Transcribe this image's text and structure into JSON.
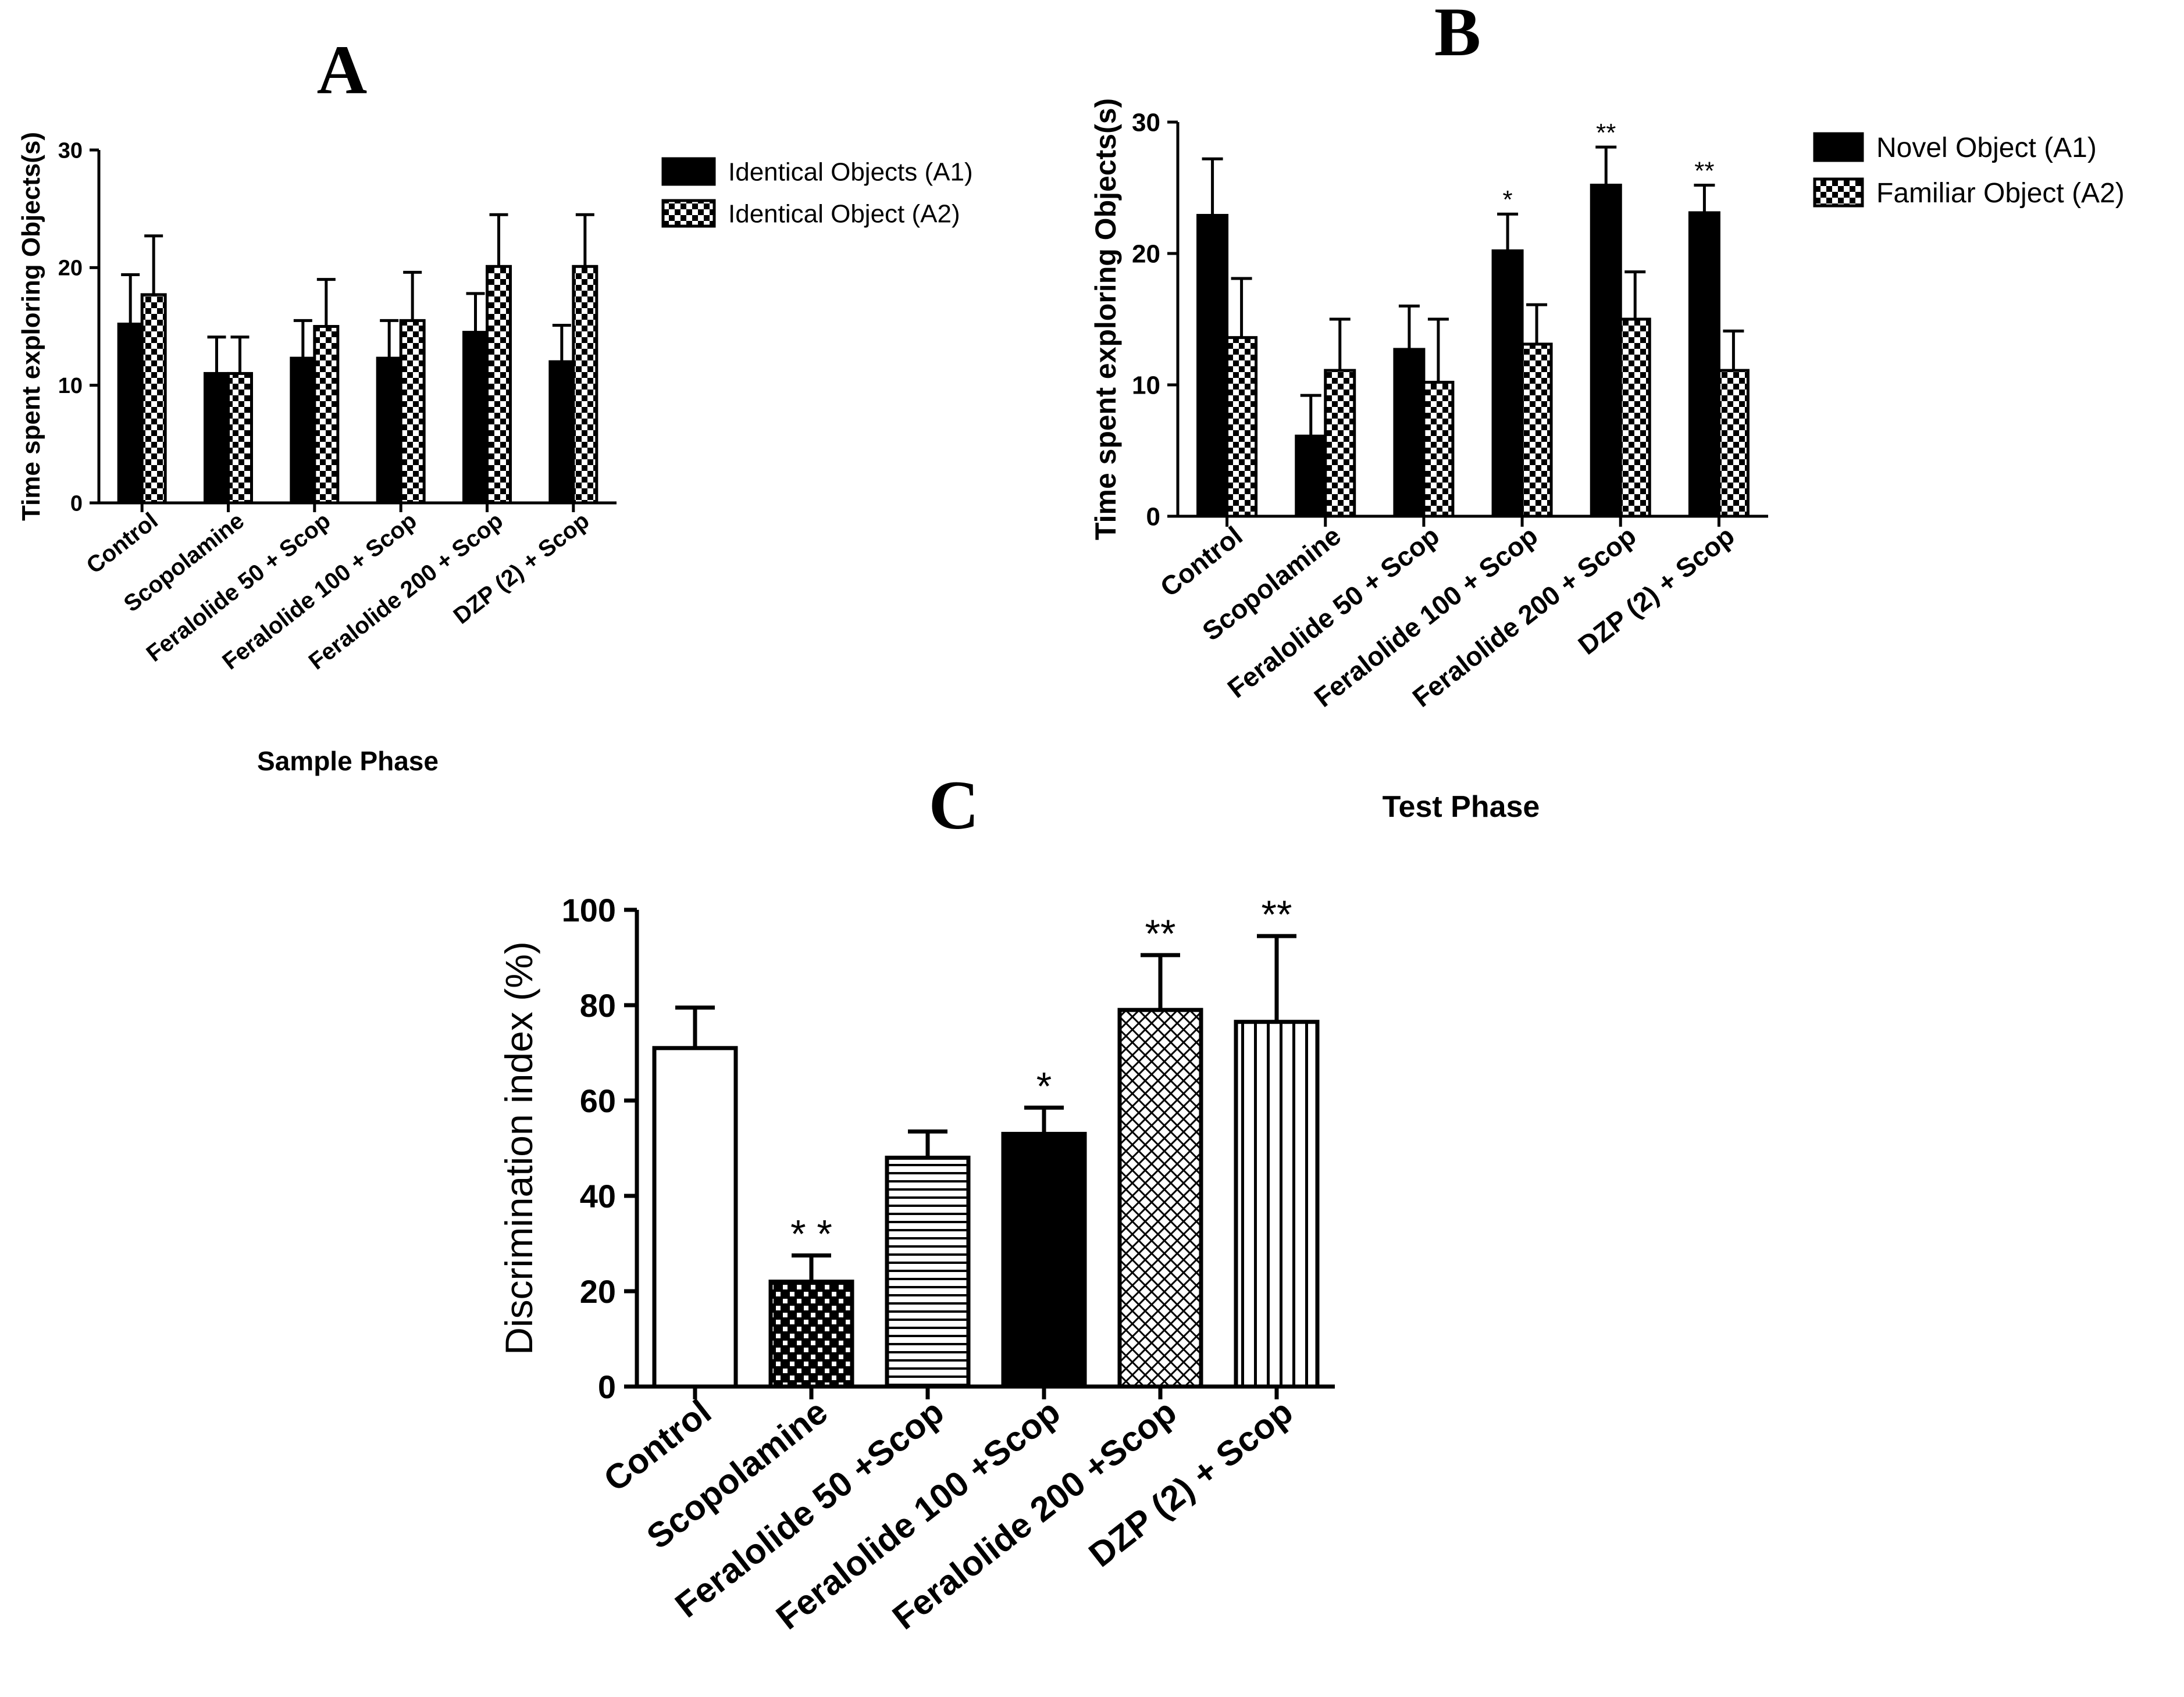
{
  "chart_data": [
    {
      "panel": "A",
      "type": "bar",
      "title": "A",
      "xlabel": "Sample Phase",
      "ylabel": "Time spent exploring Objects(s)",
      "ylim": [
        0,
        30
      ],
      "yticks": [
        "0",
        "10",
        "20",
        "30"
      ],
      "categories": [
        "Control",
        "Scopolamine",
        "Feralolide 50 + Scop",
        "Feralolide 100 + Scop",
        "Feralolide 200 + Scop",
        "DZP (2) + Scop"
      ],
      "legend_position": "right",
      "series": [
        {
          "name": "Identical Objects (A1)",
          "fill": "solid",
          "values": [
            15.2,
            11.0,
            12.3,
            12.3,
            14.5,
            12.0
          ],
          "errors": [
            4.2,
            3.1,
            3.2,
            3.2,
            3.3,
            3.1
          ]
        },
        {
          "name": "Identical Object (A2)",
          "fill": "checker",
          "values": [
            17.7,
            11.0,
            15.0,
            15.5,
            20.1,
            20.1
          ],
          "errors": [
            5.0,
            3.1,
            4.0,
            4.1,
            4.4,
            4.4
          ]
        }
      ],
      "significance": [
        [
          "",
          ""
        ],
        [
          "",
          ""
        ],
        [
          "",
          ""
        ],
        [
          "",
          ""
        ],
        [
          "",
          ""
        ],
        [
          "",
          ""
        ]
      ]
    },
    {
      "panel": "B",
      "type": "bar",
      "title": "B",
      "xlabel": "Test Phase",
      "ylabel": "Time spent exploring Objects(s)",
      "ylim": [
        0,
        30
      ],
      "yticks": [
        "0",
        "10",
        "20",
        "30"
      ],
      "categories": [
        "Control",
        "Scopolamine",
        "Feralolide 50 + Scop",
        "Feralolide 100 + Scop",
        "Feralolide 200 + Scop",
        "DZP (2) + Scop"
      ],
      "legend_position": "top-right",
      "series": [
        {
          "name": "Novel Object (A1)",
          "fill": "solid",
          "values": [
            22.9,
            6.1,
            12.7,
            20.2,
            25.2,
            23.1
          ],
          "errors": [
            4.3,
            3.1,
            3.3,
            2.8,
            2.9,
            2.1
          ]
        },
        {
          "name": "Familiar Object (A2)",
          "fill": "checker",
          "values": [
            13.6,
            11.1,
            10.2,
            13.1,
            15.0,
            11.1
          ],
          "errors": [
            4.5,
            3.9,
            4.8,
            3.0,
            3.6,
            3.0
          ]
        }
      ],
      "significance": [
        [
          "",
          ""
        ],
        [
          "",
          ""
        ],
        [
          "",
          ""
        ],
        [
          "*",
          ""
        ],
        [
          "**",
          ""
        ],
        [
          "**",
          ""
        ]
      ]
    },
    {
      "panel": "C",
      "type": "bar",
      "title": "C",
      "xlabel": "",
      "ylabel": "Discrimination index (%)",
      "ylim": [
        0,
        100
      ],
      "yticks": [
        "0",
        "20",
        "40",
        "60",
        "80",
        "100"
      ],
      "categories": [
        "Control",
        "Scopolamine",
        "Feralolide 50 +Scop",
        "Feralolide 100 +Scop",
        "Feralolide 200 +Scop",
        "DZP (2) + Scop"
      ],
      "fills": [
        "white",
        "checker",
        "hstripes",
        "solid",
        "crosshatch",
        "vstripes"
      ],
      "values": [
        71,
        22,
        48,
        53,
        79,
        76.5
      ],
      "errors": [
        8.5,
        5.5,
        5.5,
        5.5,
        11.5,
        18
      ],
      "significance": [
        "",
        "* *",
        "",
        "*",
        "**",
        "**"
      ]
    }
  ]
}
